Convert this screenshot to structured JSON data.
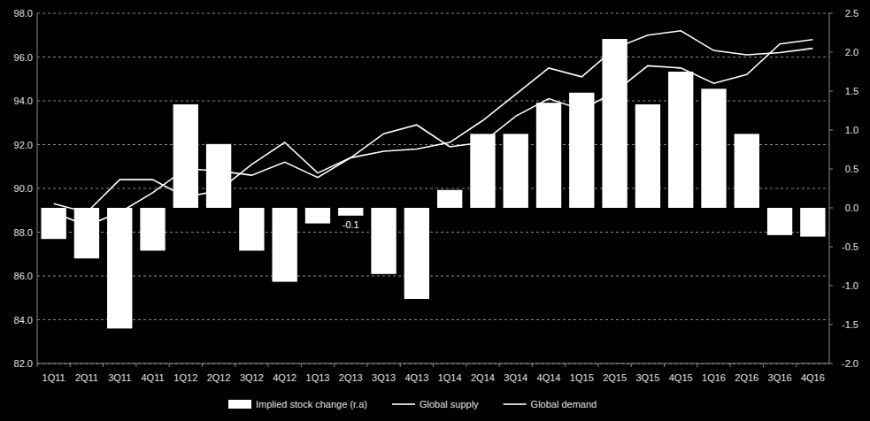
{
  "chart_data": {
    "type": "bar",
    "categories": [
      "1Q11",
      "2Q11",
      "3Q11",
      "4Q11",
      "1Q12",
      "2Q12",
      "3Q12",
      "4Q12",
      "1Q13",
      "2Q13",
      "3Q13",
      "4Q13",
      "1Q14",
      "2Q14",
      "3Q14",
      "4Q14",
      "1Q15",
      "2Q15",
      "3Q15",
      "4Q15",
      "1Q16",
      "2Q16",
      "3Q16",
      "4Q16"
    ],
    "series": [
      {
        "name": "Implied stock change (r.a)",
        "type": "bar",
        "axis": "y2",
        "color": "#ffffff",
        "values": [
          -0.4,
          -0.65,
          -1.55,
          -0.55,
          1.33,
          0.82,
          -0.55,
          -0.95,
          -0.2,
          -0.1,
          -0.85,
          -1.17,
          0.23,
          0.95,
          0.95,
          1.35,
          1.48,
          2.17,
          1.33,
          1.75,
          1.53,
          0.95,
          -0.35,
          -0.37
        ],
        "value_labels": [
          null,
          null,
          null,
          null,
          null,
          null,
          null,
          null,
          null,
          "-0.1",
          null,
          null,
          null,
          null,
          null,
          null,
          null,
          null,
          null,
          null,
          null,
          null,
          null,
          null
        ]
      },
      {
        "name": "Global supply",
        "type": "line",
        "color": "#ffffff",
        "values": [
          88.9,
          88.3,
          88.9,
          89.8,
          90.9,
          90.8,
          90.6,
          91.2,
          90.5,
          91.4,
          91.7,
          91.8,
          92.1,
          93.1,
          94.3,
          95.5,
          95.1,
          96.4,
          97.0,
          97.2,
          96.3,
          96.1,
          96.2,
          96.4
        ]
      },
      {
        "name": "Global demand",
        "type": "line",
        "color": "#ffffff",
        "values": [
          89.3,
          88.9,
          90.4,
          90.4,
          89.6,
          89.9,
          91.1,
          92.1,
          90.7,
          91.4,
          92.5,
          92.9,
          91.9,
          92.1,
          93.3,
          94.1,
          93.6,
          94.4,
          95.6,
          95.5,
          94.8,
          95.2,
          96.6,
          96.8
        ]
      }
    ],
    "ylim": [
      82,
      98
    ],
    "yticks": [
      {
        "value": 82,
        "label": "82.0"
      },
      {
        "value": 84,
        "label": "84.0"
      },
      {
        "value": 86,
        "label": "86.0"
      },
      {
        "value": 88,
        "label": "88.0"
      },
      {
        "value": 90,
        "label": "90.0"
      },
      {
        "value": 92,
        "label": "92.0"
      },
      {
        "value": 94,
        "label": "94.0"
      },
      {
        "value": 96,
        "label": "96.0"
      },
      {
        "value": 98,
        "label": "98.0"
      }
    ],
    "y2lim": [
      -2,
      2.5
    ],
    "y2ticks": [
      {
        "value": -2,
        "label": "-2.0"
      },
      {
        "value": -1.5,
        "label": "-1.5"
      },
      {
        "value": -1,
        "label": "-1.0"
      },
      {
        "value": -0.5,
        "label": "-0.5"
      },
      {
        "value": 0,
        "label": "0.0"
      },
      {
        "value": 0.5,
        "label": "0.5"
      },
      {
        "value": 1,
        "label": "1.0"
      },
      {
        "value": 1.5,
        "label": "1.5"
      },
      {
        "value": 2,
        "label": "2.0"
      },
      {
        "value": 2.5,
        "label": "2.5"
      }
    ],
    "grid": true,
    "legend": "bottom"
  }
}
